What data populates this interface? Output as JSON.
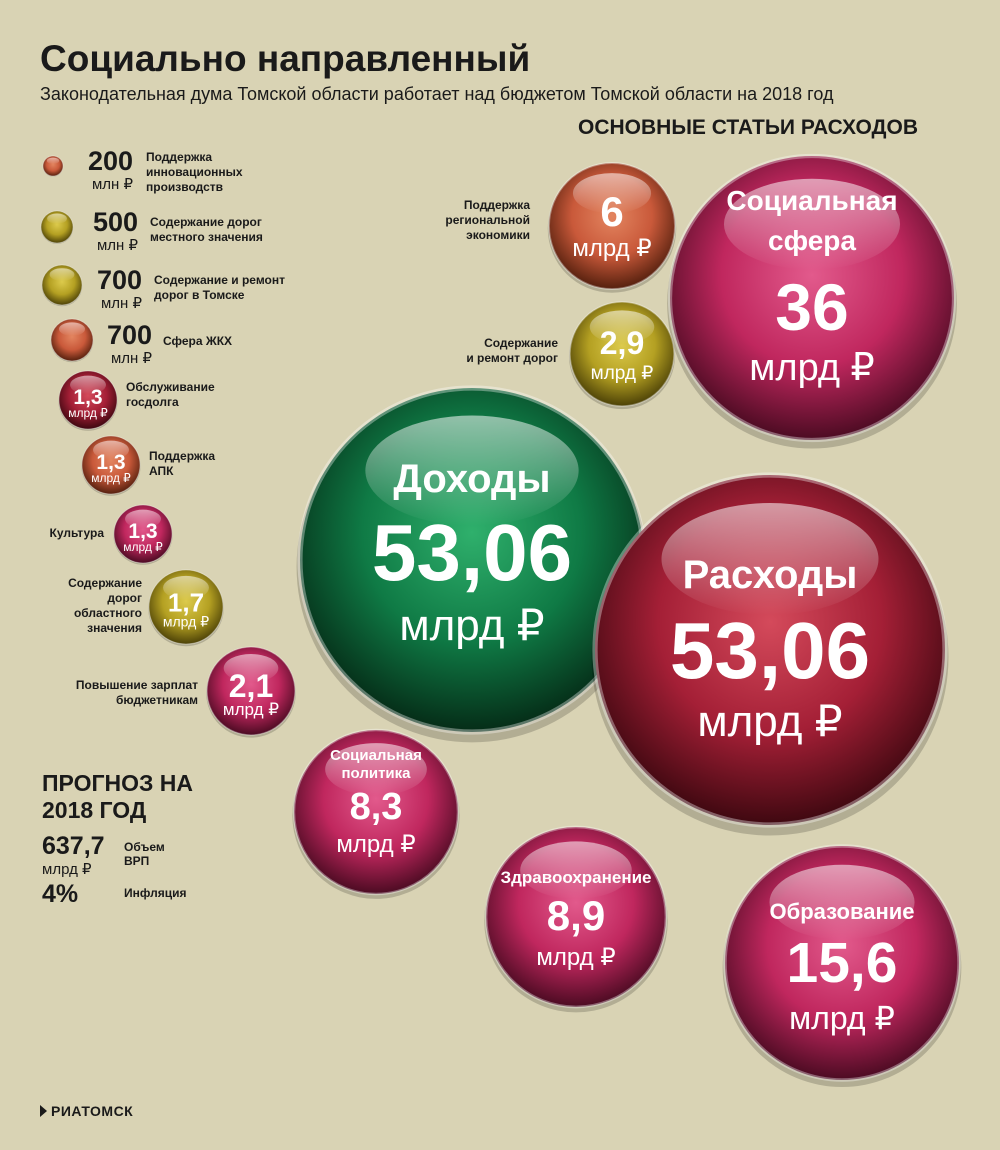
{
  "title": "Социально направленный",
  "subtitle": "Законодательная дума Томской области работает над бюджетом Томской области на 2018 год",
  "section_title": "ОСНОВНЫЕ СТАТЬИ РАСХОДОВ",
  "colors": {
    "background": "#d9d3b4",
    "income_green": "#0f7a45",
    "expense_red": "#a41f36",
    "social_magenta": "#c0275e",
    "roads_olive": "#b4a022",
    "economy_orange": "#c9593a"
  },
  "chart_data": {
    "type": "bubble",
    "income": {
      "label": "Доходы",
      "value": "53,06",
      "unit": "млрд ₽"
    },
    "expenses": {
      "label": "Расходы",
      "value": "53,06",
      "unit": "млрд ₽"
    },
    "main_items": [
      {
        "label": "Социальная сфера",
        "value": "36",
        "unit": "млрд ₽",
        "color": "magenta"
      },
      {
        "label": "Поддержка региональной экономики",
        "value": "6",
        "unit": "млрд ₽",
        "color": "orange"
      },
      {
        "label": "Содержание и ремонт дорог",
        "value": "2,9",
        "unit": "млрд ₽",
        "color": "olive"
      },
      {
        "label": "Социальная политика",
        "value": "8,3",
        "unit": "млрд ₽",
        "color": "magenta"
      },
      {
        "label": "Здравоохранение",
        "value": "8,9",
        "unit": "млрд ₽",
        "color": "magenta"
      },
      {
        "label": "Образование",
        "value": "15,6",
        "unit": "млрд ₽",
        "color": "magenta"
      }
    ],
    "small_items": [
      {
        "value": "200",
        "unit": "млн ₽",
        "label": "Поддержка инновационных производств",
        "color": "orange"
      },
      {
        "value": "500",
        "unit": "млн ₽",
        "label": "Содержание дорог местного значения",
        "color": "olive"
      },
      {
        "value": "700",
        "unit": "млн ₽",
        "label": "Содержание и ремонт дорог в Томске",
        "color": "olive"
      },
      {
        "value": "700",
        "unit": "млн ₽",
        "label": "Сфера ЖКХ",
        "color": "orange"
      },
      {
        "value": "1,3",
        "unit": "млрд ₽",
        "label": "Обслуживание госдолга",
        "color": "red"
      },
      {
        "value": "1,3",
        "unit": "млрд ₽",
        "label": "Поддержка АПК",
        "color": "orange"
      },
      {
        "value": "1,3",
        "unit": "млрд ₽",
        "label": "Культура",
        "color": "magenta"
      },
      {
        "value": "1,7",
        "unit": "млрд ₽",
        "label": "Содержание дорог областного значения",
        "color": "olive"
      },
      {
        "value": "2,1",
        "unit": "млрд ₽",
        "label": "Повышение зарплат бюджетникам",
        "color": "magenta"
      }
    ]
  },
  "forecast": {
    "title": "ПРОГНОЗ НА 2018 ГОД",
    "gdp": {
      "value": "637,7",
      "unit": "млрд ₽",
      "label": "Объем ВРП"
    },
    "inflation": {
      "value": "4%",
      "label": "Инфляция"
    }
  },
  "brand": "РИАТОМСК"
}
